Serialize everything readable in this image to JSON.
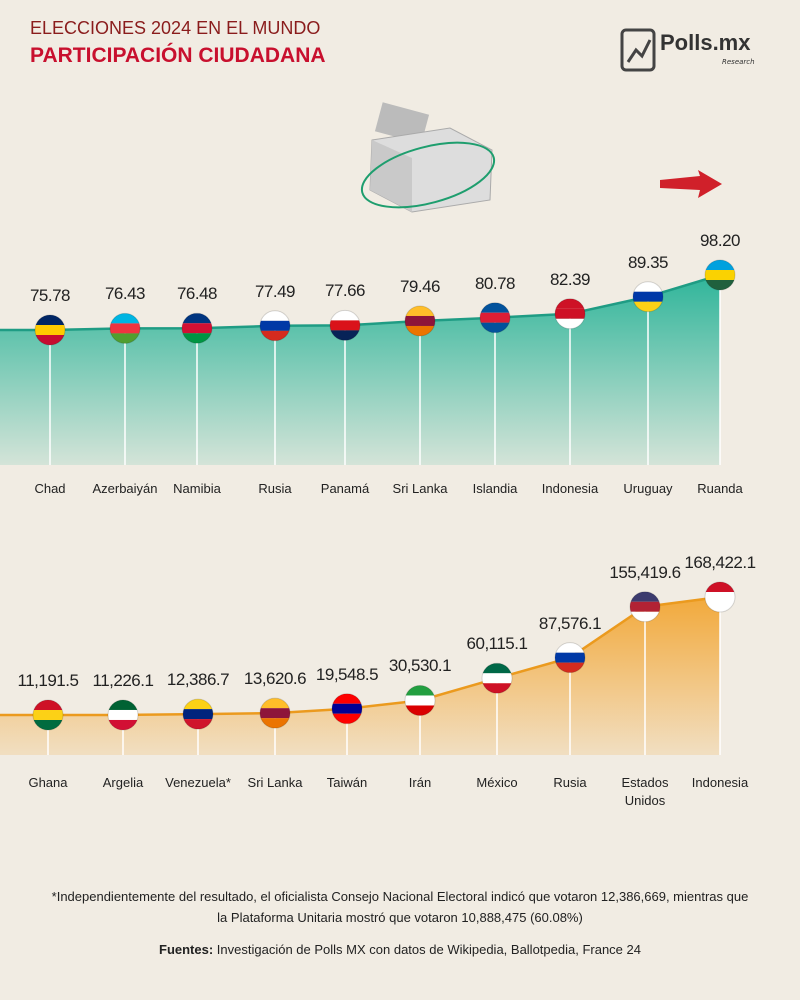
{
  "header": {
    "title": "ELECCIONES 2024 EN EL MUNDO",
    "subtitle": "PARTICIPACIÓN CIUDADANA",
    "logo": "Polls.mx",
    "logo_tagline": "Research"
  },
  "chart_data": [
    {
      "type": "area",
      "color": "#2fb59a",
      "categories": [
        "Chad",
        "Azerbaiyán",
        "Namibia",
        "Rusia",
        "Panamá",
        "Sri Lanka",
        "Islandia",
        "Indonesia",
        "Uruguay",
        "Ruanda"
      ],
      "values": [
        75.78,
        76.43,
        76.48,
        77.49,
        77.66,
        79.46,
        80.78,
        82.39,
        89.35,
        98.2
      ],
      "value_labels": [
        "75.78",
        "76.43",
        "76.48",
        "77.49",
        "77.66",
        "79.46",
        "80.78",
        "82.39",
        "89.35",
        "98.20"
      ]
    },
    {
      "type": "area",
      "color": "#f2a93b",
      "categories": [
        "Ghana",
        "Argelia",
        "Venezuela*",
        "Sri Lanka",
        "Taiwán",
        "Irán",
        "México",
        "Rusia",
        "Estados Unidos",
        "Indonesia"
      ],
      "values": [
        11191.5,
        11226.1,
        12386.7,
        13620.6,
        19548.5,
        30530.1,
        60115.1,
        87576.1,
        155419.6,
        168422.1
      ],
      "value_labels": [
        "11,191.5",
        "11,226.1",
        "12,386.7",
        "13,620.6",
        "19,548.5",
        "30,530.1",
        "60,115.1",
        "87,576.1",
        "155,419.6",
        "168,422.1"
      ]
    }
  ],
  "footnote": "*Independientemente del resultado, el oficialista Consejo Nacional Electoral indicó que votaron 12,386,669, mientras que la Plataforma Unitaria mostró que votaron 10,888,475 (60.08%)",
  "sources": {
    "label": "Fuentes:",
    "text": "Investigación de Polls MX con datos de Wikipedia, Ballotpedia, France 24"
  }
}
